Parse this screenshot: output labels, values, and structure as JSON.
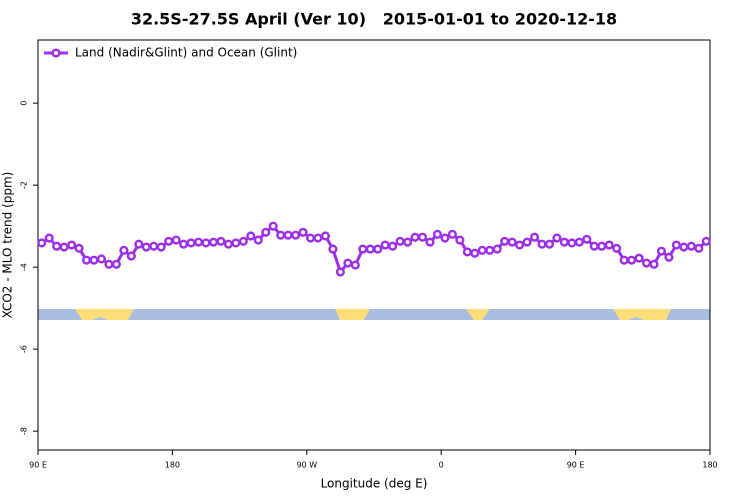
{
  "chart_data": {
    "type": "line",
    "title": "32.5S-27.5S April (Ver 10)   2015-01-01 to 2020-12-18",
    "x_label": "Longitude (deg E)",
    "y_label": "XCO2 - MLO trend (ppm)",
    "x": [
      92.5,
      97.5,
      102.5,
      107.5,
      112.5,
      117.5,
      122.5,
      127.5,
      132.5,
      137.5,
      142.5,
      147.5,
      152.5,
      157.5,
      162.5,
      167.5,
      172.5,
      177.5,
      182.5,
      187.5,
      192.5,
      197.5,
      202.5,
      207.5,
      212.5,
      217.5,
      222.5,
      227.5,
      232.5,
      237.5,
      242.5,
      247.5,
      252.5,
      257.5,
      262.5,
      267.5,
      272.5,
      277.5,
      282.5,
      287.5,
      292.5,
      297.5,
      302.5,
      307.5,
      312.5,
      317.5,
      322.5,
      327.5,
      332.5,
      337.5,
      342.5,
      347.5,
      352.5,
      357.5,
      362.5,
      367.5,
      372.5,
      377.5,
      382.5,
      387.5,
      392.5,
      397.5,
      402.5,
      407.5,
      412.5,
      417.5,
      422.5,
      427.5,
      432.5,
      437.5,
      442.5,
      447.5,
      452.5,
      457.5,
      462.5,
      467.5,
      472.5,
      477.5,
      482.5,
      487.5,
      492.5,
      497.5,
      502.5,
      507.5,
      512.5,
      517.5,
      522.5,
      527.5,
      532.5,
      537.5
    ],
    "series": [
      {
        "name": "Land (Nadir&Glint) and Ocean (Glint)",
        "color": "#9b30e6",
        "values": [
          -3.41,
          -3.29,
          -3.49,
          -3.51,
          -3.46,
          -3.54,
          -3.83,
          -3.83,
          -3.8,
          -3.93,
          -3.93,
          -3.59,
          -3.73,
          -3.44,
          -3.51,
          -3.49,
          -3.51,
          -3.37,
          -3.34,
          -3.44,
          -3.41,
          -3.39,
          -3.41,
          -3.39,
          -3.37,
          -3.44,
          -3.41,
          -3.37,
          -3.24,
          -3.34,
          -3.15,
          -3.0,
          -3.22,
          -3.22,
          -3.22,
          -3.15,
          -3.29,
          -3.29,
          -3.24,
          -3.56,
          -4.12,
          -3.9,
          -3.95,
          -3.56,
          -3.56,
          -3.56,
          -3.46,
          -3.49,
          -3.37,
          -3.39,
          -3.27,
          -3.27,
          -3.39,
          -3.2,
          -3.29,
          -3.2,
          -3.34,
          -3.63,
          -3.66,
          -3.59,
          -3.59,
          -3.56,
          -3.37,
          -3.39,
          -3.46,
          -3.39,
          -3.27,
          -3.44,
          -3.44,
          -3.29,
          -3.39,
          -3.41,
          -3.39,
          -3.32,
          -3.49,
          -3.49,
          -3.46,
          -3.54,
          -3.83,
          -3.83,
          -3.78,
          -3.9,
          -3.93,
          -3.61,
          -3.76,
          -3.46,
          -3.51,
          -3.49,
          -3.54,
          -3.37
        ]
      }
    ],
    "xlim": [
      90,
      540
    ],
    "xticks": [
      {
        "value": 90,
        "label": "90 E"
      },
      180,
      {
        "value": 270,
        "label": "90 W"
      },
      {
        "value": 360,
        "label": "0"
      },
      {
        "value": 450,
        "label": "90 E"
      },
      {
        "value": 540,
        "label": "180"
      }
    ],
    "ylim": [
      -8.46,
      1.54
    ],
    "yticks": [
      0,
      -2,
      -4,
      -6,
      -8
    ],
    "legend": "top-left",
    "grid": false
  }
}
